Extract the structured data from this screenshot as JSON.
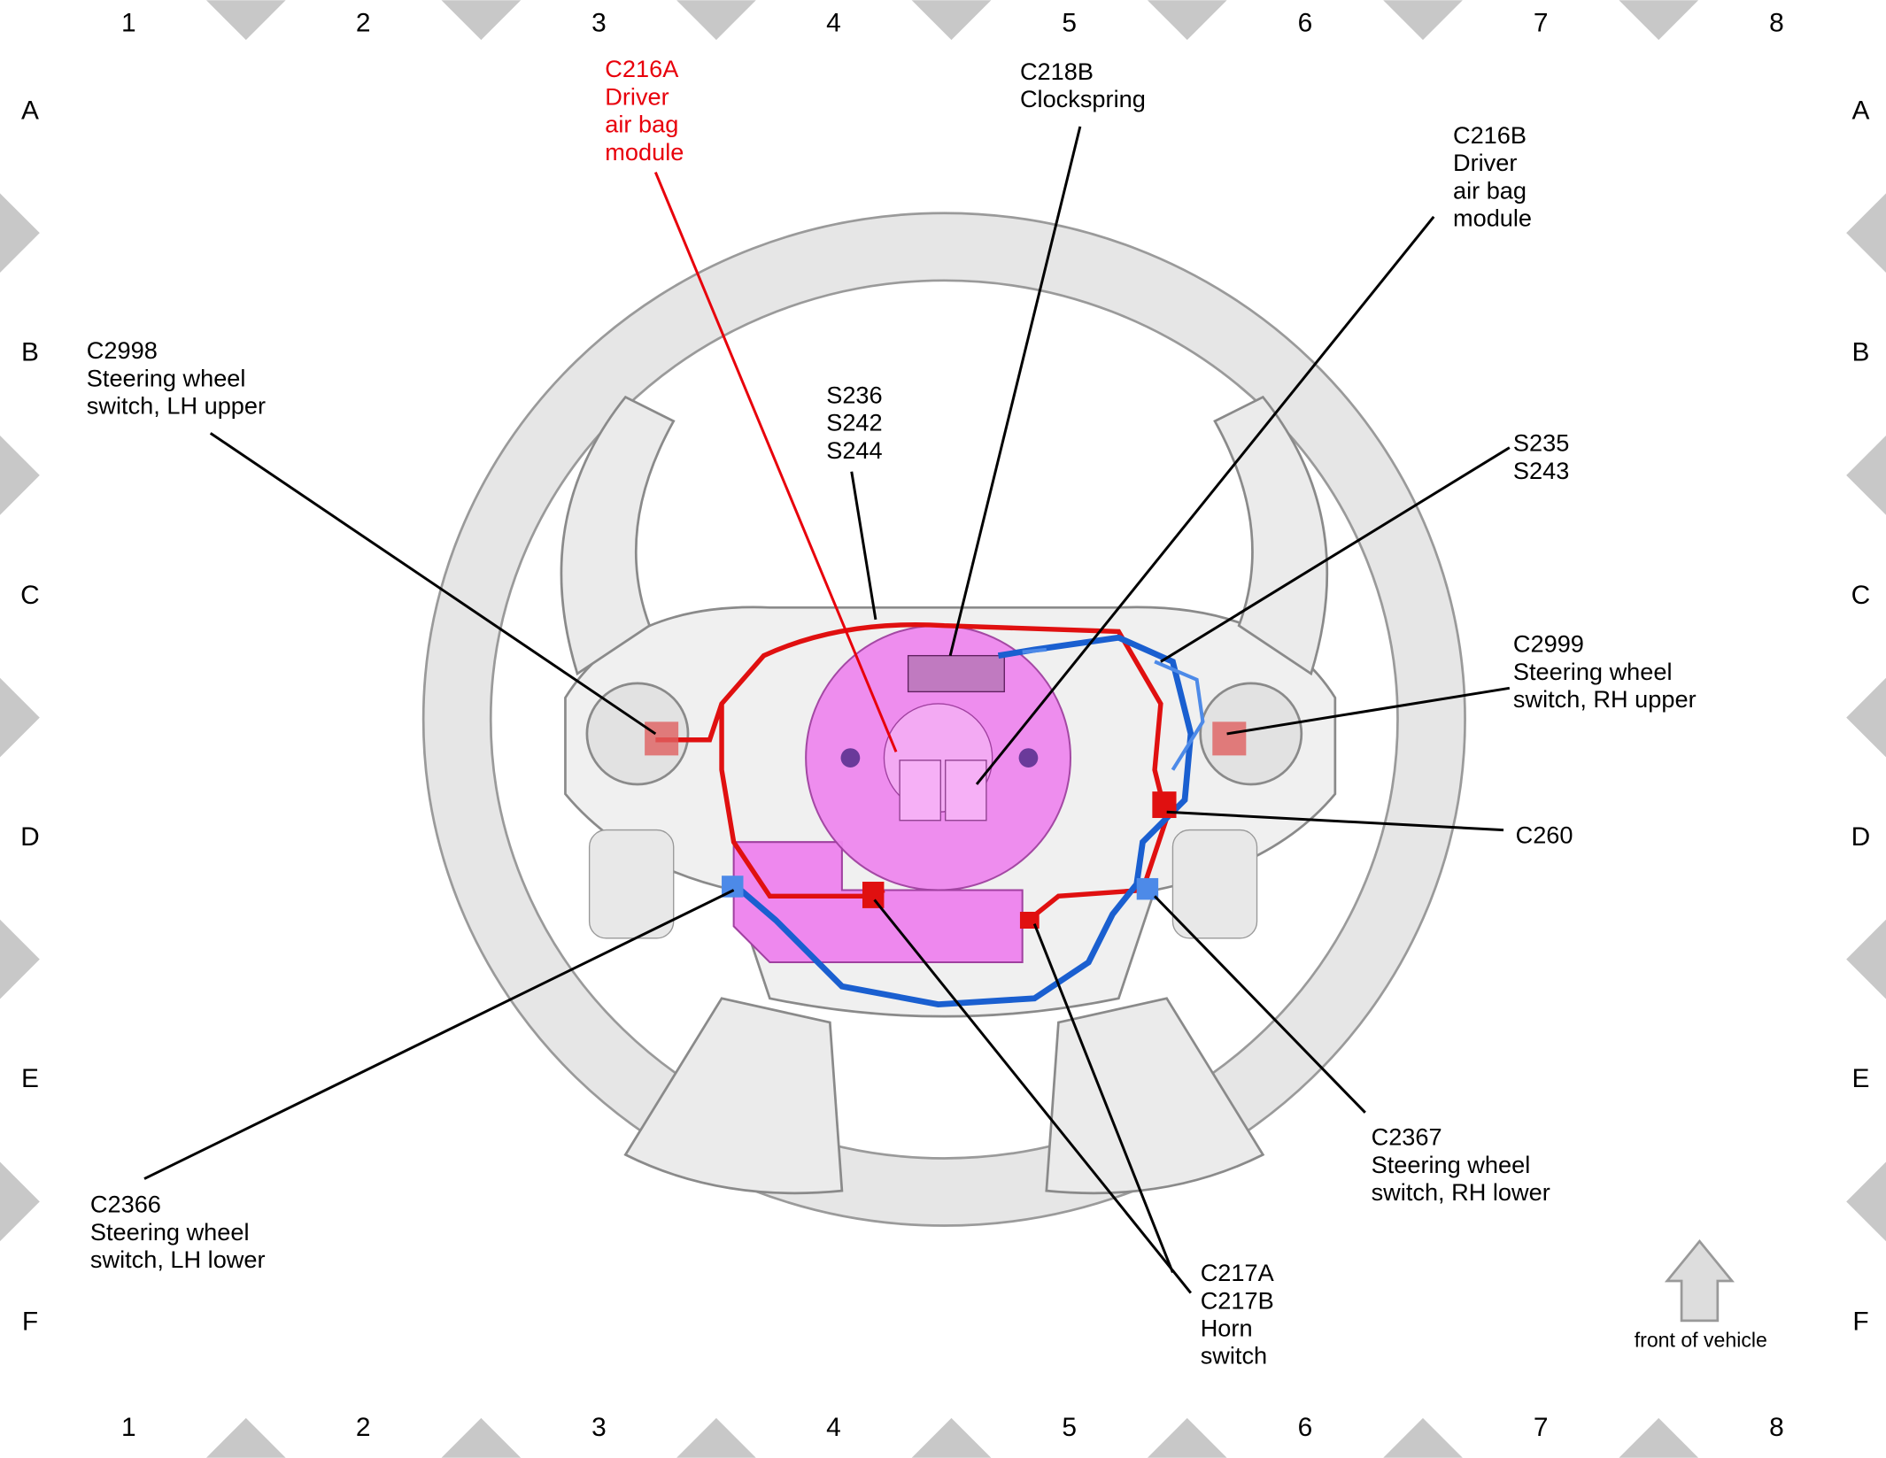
{
  "grid": {
    "columns": [
      "1",
      "2",
      "3",
      "4",
      "5",
      "6",
      "7",
      "8"
    ],
    "rows": [
      "A",
      "B",
      "C",
      "D",
      "E",
      "F"
    ]
  },
  "callouts": [
    {
      "lines": [
        "C216A",
        "Driver",
        "air bag",
        "module"
      ]
    },
    {
      "lines": [
        "C218B",
        "Clockspring"
      ]
    },
    {
      "lines": [
        "C216B",
        "Driver",
        "air bag",
        "module"
      ]
    },
    {
      "lines": [
        "C2998",
        "Steering wheel",
        "switch, LH upper"
      ]
    },
    {
      "lines": [
        "S236",
        "S242",
        "S244"
      ]
    },
    {
      "lines": [
        "S235",
        "S243"
      ]
    },
    {
      "lines": [
        "C2999",
        "Steering wheel",
        "switch, RH upper"
      ]
    },
    {
      "lines": [
        "C260"
      ]
    },
    {
      "lines": [
        "C2366",
        "Steering wheel",
        "switch, LH lower"
      ]
    },
    {
      "lines": [
        "C2367",
        "Steering wheel",
        "switch, RH lower"
      ]
    },
    {
      "lines": [
        "C217A",
        "C217B",
        "Horn",
        "switch"
      ]
    }
  ],
  "orientation": "front of vehicle"
}
